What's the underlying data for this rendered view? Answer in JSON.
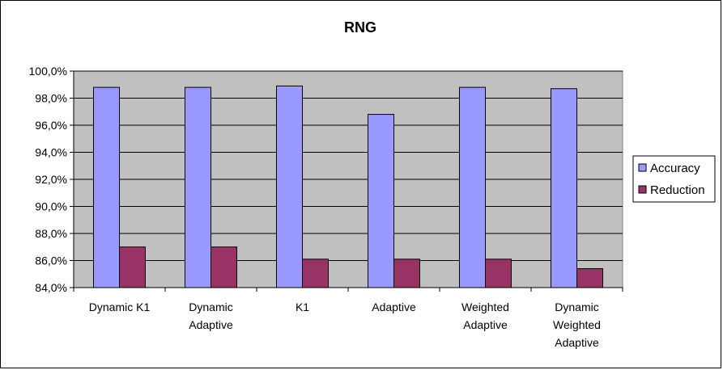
{
  "chart_data": {
    "type": "bar",
    "title": "RNG",
    "categories": [
      [
        "Dynamic K1"
      ],
      [
        "Dynamic",
        "Adaptive"
      ],
      [
        "K1"
      ],
      [
        "Adaptive"
      ],
      [
        "Weighted",
        "Adaptive"
      ],
      [
        "Dynamic",
        "Weighted",
        "Adaptive"
      ]
    ],
    "series": [
      {
        "name": "Accuracy",
        "color": "#9999ff",
        "values": [
          98.8,
          98.8,
          98.9,
          96.8,
          98.8,
          98.7
        ]
      },
      {
        "name": "Reduction",
        "color": "#993366",
        "values": [
          87.0,
          87.0,
          86.1,
          86.1,
          86.1,
          85.4
        ]
      }
    ],
    "ylim": [
      84,
      100
    ],
    "yticks": [
      "84,0%",
      "86,0%",
      "88,0%",
      "90,0%",
      "92,0%",
      "94,0%",
      "96,0%",
      "98,0%",
      "100,0%"
    ],
    "grid": true,
    "plot_background": "#c0c0c0",
    "legend_position": "right"
  }
}
